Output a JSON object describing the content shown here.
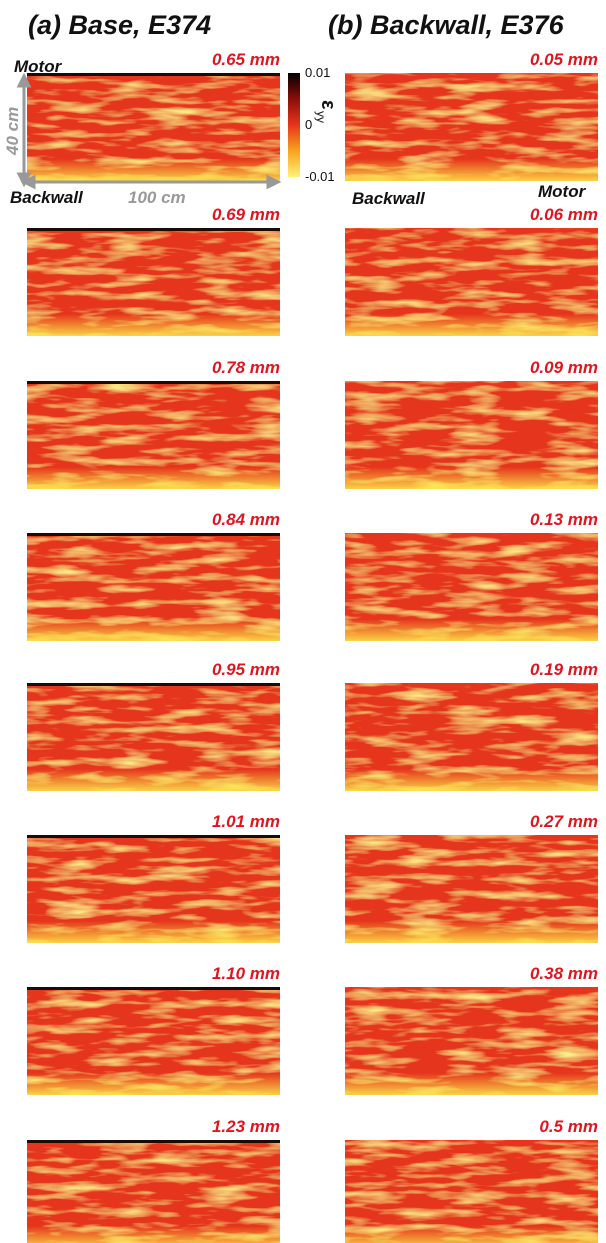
{
  "columns": [
    {
      "title": "(a) Base, E374",
      "panels": [
        "0.65 mm",
        "0.69 mm",
        "0.78 mm",
        "0.84 mm",
        "0.95 mm",
        "1.01 mm",
        "1.10 mm",
        "1.23 mm"
      ]
    },
    {
      "title": "(b) Backwall, E376",
      "panels": [
        "0.05 mm",
        "0.06 mm",
        "0.09 mm",
        "0.13 mm",
        "0.19 mm",
        "0.27 mm",
        "0.38 mm",
        "0.5 mm"
      ]
    }
  ],
  "annotations": {
    "left_top": "Motor",
    "left_bottom": "Backwall",
    "height": "40 cm",
    "width": "100 cm",
    "right_left": "Backwall",
    "right_right": "Motor"
  },
  "colorbar": {
    "symbol": "ε",
    "subscript": "yy",
    "ticks": [
      "0.01",
      "0",
      "-0.01"
    ]
  }
}
